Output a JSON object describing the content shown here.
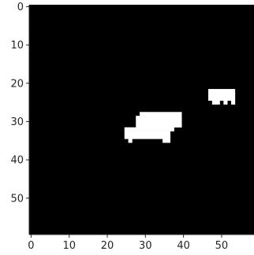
{
  "chart_data": {
    "type": "heatmap",
    "title": "",
    "xlabel": "",
    "ylabel": "",
    "grid": false,
    "colormap": "gray",
    "background_value": 0,
    "foreground_value": 1,
    "colors": {
      "background": "#000000",
      "foreground": "#ffffff",
      "axis": "#262626"
    },
    "shape": {
      "rows": 60,
      "cols": 59
    },
    "xlim": [
      -0.5,
      58.5
    ],
    "ylim": [
      59.5,
      -0.5
    ],
    "x_ticks": [
      0,
      10,
      20,
      30,
      40,
      50
    ],
    "x_tick_labels": [
      "0",
      "10",
      "20",
      "30",
      "40",
      "50"
    ],
    "y_ticks": [
      0,
      10,
      20,
      30,
      40,
      50
    ],
    "y_tick_labels": [
      "0",
      "10",
      "20",
      "30",
      "40",
      "50"
    ],
    "foreground_runs": [
      {
        "row": 22,
        "col_start": 47,
        "col_end": 53
      },
      {
        "row": 23,
        "col_start": 47,
        "col_end": 53
      },
      {
        "row": 24,
        "col_start": 47,
        "col_end": 53
      },
      {
        "row": 25,
        "col_start": 48,
        "col_end": 49
      },
      {
        "row": 25,
        "col_start": 51,
        "col_end": 51
      },
      {
        "row": 25,
        "col_start": 53,
        "col_end": 53
      },
      {
        "row": 28,
        "col_start": 29,
        "col_end": 39
      },
      {
        "row": 29,
        "col_start": 28,
        "col_end": 39
      },
      {
        "row": 30,
        "col_start": 28,
        "col_end": 39
      },
      {
        "row": 31,
        "col_start": 28,
        "col_end": 39
      },
      {
        "row": 32,
        "col_start": 25,
        "col_end": 37
      },
      {
        "row": 33,
        "col_start": 25,
        "col_end": 36
      },
      {
        "row": 34,
        "col_start": 25,
        "col_end": 36
      },
      {
        "row": 35,
        "col_start": 26,
        "col_end": 26
      },
      {
        "row": 35,
        "col_start": 35,
        "col_end": 36
      }
    ]
  }
}
